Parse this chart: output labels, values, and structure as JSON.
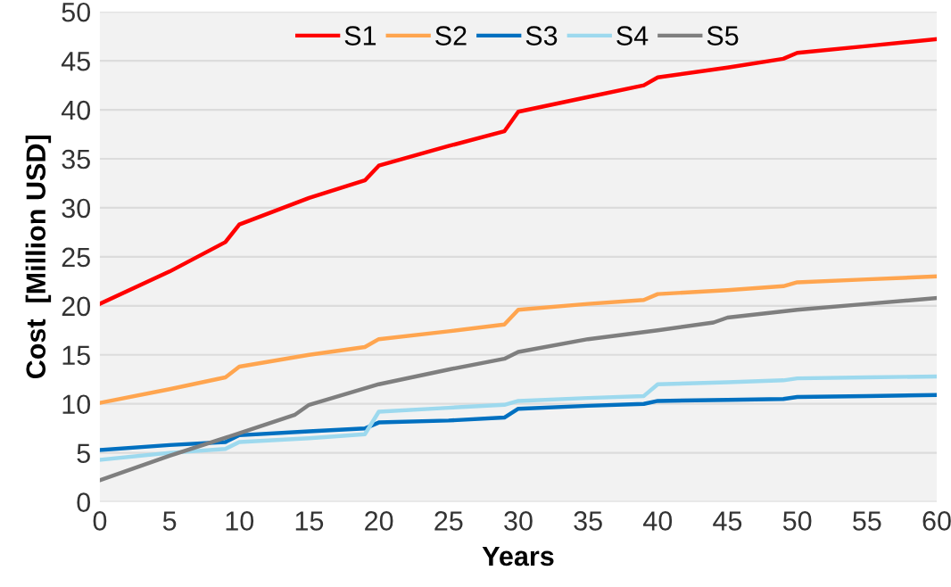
{
  "chart_data": {
    "type": "line",
    "xlabel": "Years",
    "ylabel": "Cost  [Million USD]",
    "xlim": [
      0,
      60
    ],
    "xticks": [
      0,
      5,
      10,
      15,
      20,
      25,
      30,
      35,
      40,
      45,
      50,
      55,
      60
    ],
    "ylim": [
      0,
      50
    ],
    "yticks": [
      0,
      5,
      10,
      15,
      20,
      25,
      30,
      35,
      40,
      45,
      50
    ],
    "grid": "y",
    "legend": "top",
    "marker": "none",
    "line_style": "solid",
    "series": [
      {
        "name": "S1",
        "color": "#ff0000",
        "x": [
          0,
          5,
          9,
          10,
          15,
          19,
          20,
          25,
          29,
          30,
          35,
          39,
          40,
          45,
          49,
          50,
          55,
          60
        ],
        "values": [
          20.2,
          23.5,
          26.5,
          28.3,
          31,
          32.8,
          34.3,
          36.3,
          37.8,
          39.8,
          41.3,
          42.5,
          43.3,
          44.3,
          45.2,
          45.8,
          46.5,
          47.2
        ]
      },
      {
        "name": "S2",
        "color": "#ffa54f",
        "x": [
          0,
          5,
          9,
          10,
          15,
          19,
          20,
          25,
          29,
          30,
          35,
          39,
          40,
          45,
          49,
          50,
          55,
          60
        ],
        "values": [
          10.1,
          11.5,
          12.7,
          13.8,
          15,
          15.8,
          16.6,
          17.4,
          18.1,
          19.6,
          20.2,
          20.6,
          21.2,
          21.6,
          22,
          22.4,
          22.7,
          23
        ]
      },
      {
        "name": "S3",
        "color": "#0070c0",
        "x": [
          0,
          5,
          9,
          10,
          15,
          19,
          20,
          25,
          29,
          30,
          35,
          39,
          40,
          45,
          49,
          50,
          55,
          60
        ],
        "values": [
          5.3,
          5.8,
          6.1,
          6.8,
          7.2,
          7.5,
          8.1,
          8.3,
          8.6,
          9.5,
          9.8,
          10.0,
          10.3,
          10.4,
          10.5,
          10.7,
          10.8,
          10.9
        ]
      },
      {
        "name": "S4",
        "color": "#9dd9ee",
        "x": [
          0,
          5,
          9,
          10,
          15,
          19,
          20,
          25,
          29,
          30,
          35,
          39,
          40,
          45,
          49,
          50,
          55,
          60
        ],
        "values": [
          4.3,
          5.0,
          5.4,
          6.1,
          6.5,
          6.9,
          9.2,
          9.6,
          9.9,
          10.3,
          10.6,
          10.8,
          12.0,
          12.2,
          12.4,
          12.6,
          12.7,
          12.8
        ]
      },
      {
        "name": "S5",
        "color": "#7f7f7f",
        "x": [
          0,
          5,
          10,
          14,
          15,
          20,
          25,
          29,
          30,
          35,
          40,
          44,
          45,
          50,
          55,
          60
        ],
        "values": [
          2.2,
          4.7,
          7.0,
          8.9,
          9.9,
          12,
          13.5,
          14.6,
          15.3,
          16.6,
          17.5,
          18.3,
          18.8,
          19.6,
          20.2,
          20.8
        ]
      }
    ]
  }
}
